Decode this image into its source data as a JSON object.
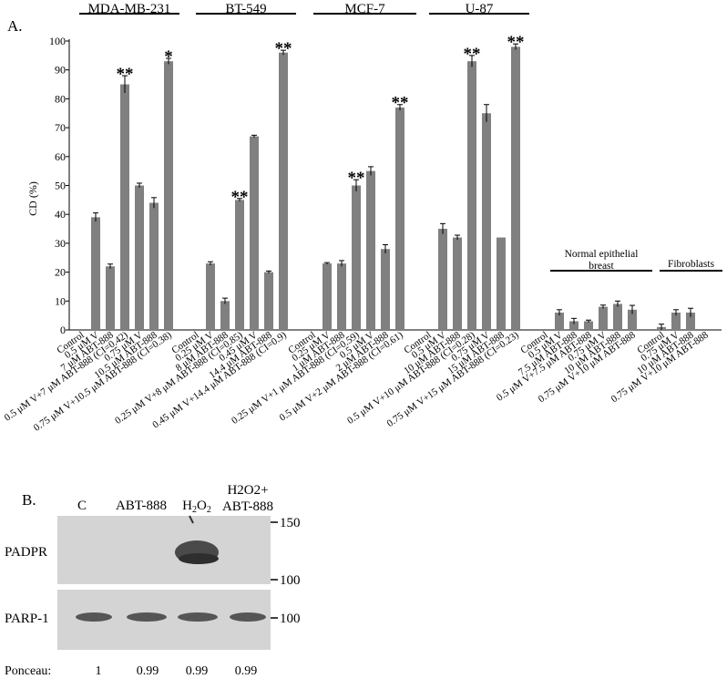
{
  "panel_a_label": "A.",
  "panel_b_label": "B.",
  "chart_data": {
    "type": "bar",
    "ylabel": "CD (%)",
    "ylim": [
      0,
      100
    ],
    "yticks": [
      0,
      10,
      20,
      30,
      40,
      50,
      60,
      70,
      80,
      90,
      100
    ],
    "groups": [
      {
        "name": "MDA-MB-231",
        "bars": [
          {
            "label": "Control",
            "value": 0,
            "err": 0,
            "sig": ""
          },
          {
            "label": "0.5 μM V",
            "value": 39,
            "err": 1.5,
            "sig": ""
          },
          {
            "label": "7 μM ABT-888",
            "value": 22,
            "err": 0.8,
            "sig": ""
          },
          {
            "label": "0.5 μM V+7 μM ABT-888 (CI=0.42)",
            "value": 85,
            "err": 3,
            "sig": "**"
          },
          {
            "label": "0.75 μM V",
            "value": 50,
            "err": 0.8,
            "sig": ""
          },
          {
            "label": "10.5 μM ABT-888",
            "value": 44,
            "err": 1.8,
            "sig": ""
          },
          {
            "label": "0.75 μM V+10.5 μM ABT-888 (CI=0.38)",
            "value": 93,
            "err": 1,
            "sig": "*"
          }
        ]
      },
      {
        "name": "BT-549",
        "bars": [
          {
            "label": "Control",
            "value": 0,
            "err": 0,
            "sig": ""
          },
          {
            "label": "0.25 μM V",
            "value": 23,
            "err": 0.6,
            "sig": ""
          },
          {
            "label": "8 μM ABT-888",
            "value": 10,
            "err": 1,
            "sig": ""
          },
          {
            "label": "0.25 μM V+8 μM ABT-888 (CI=0.85)",
            "value": 45,
            "err": 0.5,
            "sig": "**"
          },
          {
            "label": "0.45 μM V",
            "value": 67,
            "err": 0.4,
            "sig": ""
          },
          {
            "label": "14.4 μM ABT-888",
            "value": 20,
            "err": 0.4,
            "sig": ""
          },
          {
            "label": "0.45 μM V+14.4 μM ABT-888 (CI=0.9)",
            "value": 96,
            "err": 0.8,
            "sig": "**"
          }
        ]
      },
      {
        "name": "MCF-7",
        "bars": [
          {
            "label": "Control",
            "value": 0,
            "err": 0,
            "sig": ""
          },
          {
            "label": "0.25 μM V",
            "value": 23,
            "err": 0.3,
            "sig": ""
          },
          {
            "label": "1 μM ABT-888",
            "value": 23,
            "err": 1,
            "sig": ""
          },
          {
            "label": "0.25 μM V+1 μM ABT-888 (CI=0.59)",
            "value": 50,
            "err": 2,
            "sig": "**"
          },
          {
            "label": "0.5 μM V",
            "value": 55,
            "err": 1.5,
            "sig": ""
          },
          {
            "label": "2 μM ABT-888",
            "value": 28,
            "err": 1.5,
            "sig": ""
          },
          {
            "label": "0.5 μM V+2 μM ABT-888 (CI=0.61)",
            "value": 77,
            "err": 1,
            "sig": "**"
          }
        ]
      },
      {
        "name": "U-87",
        "bars": [
          {
            "label": "Control",
            "value": 0,
            "err": 0,
            "sig": ""
          },
          {
            "label": "0.5 μM V",
            "value": 35,
            "err": 1.8,
            "sig": ""
          },
          {
            "label": "10 μM ABT-888",
            "value": 32,
            "err": 0.8,
            "sig": ""
          },
          {
            "label": "0.5 μM V+10 μM ABT-888 (CI=0.28)",
            "value": 93,
            "err": 2,
            "sig": "**"
          },
          {
            "label": "0.75 μM V",
            "value": 75,
            "err": 3,
            "sig": ""
          },
          {
            "label": "15 μM ABT-888",
            "value": 32,
            "err": 0,
            "sig": ""
          },
          {
            "label": "0.75 μM V+15 μM ABT-888 (CI=0.23)",
            "value": 98,
            "err": 1,
            "sig": "**"
          }
        ]
      },
      {
        "name": "Normal epithelial breast",
        "bars": [
          {
            "label": "Control",
            "value": 0,
            "err": 0,
            "sig": ""
          },
          {
            "label": "0.5 μM V",
            "value": 6,
            "err": 1,
            "sig": ""
          },
          {
            "label": "7.5 μM ABT-888",
            "value": 3,
            "err": 1,
            "sig": ""
          },
          {
            "label": "0.5 μM V+7.5 μM ABT-888",
            "value": 3,
            "err": 0.4,
            "sig": ""
          },
          {
            "label": "0.75 μM V",
            "value": 8,
            "err": 0.6,
            "sig": ""
          },
          {
            "label": "10 μM ABT-888",
            "value": 9,
            "err": 1,
            "sig": ""
          },
          {
            "label": "0.75 μM V+10 μM ABT-888",
            "value": 7,
            "err": 1.5,
            "sig": ""
          }
        ]
      },
      {
        "name": "Fibroblasts",
        "bars": [
          {
            "label": "Control",
            "value": 1,
            "err": 1,
            "sig": ""
          },
          {
            "label": "0.75 μM V",
            "value": 6,
            "err": 1,
            "sig": ""
          },
          {
            "label": "10 μM ABT-888",
            "value": 6,
            "err": 1.5,
            "sig": ""
          },
          {
            "label": "0.75 μM V+10 μM ABT-888",
            "value": 0,
            "err": 0,
            "sig": ""
          }
        ]
      }
    ]
  },
  "blot": {
    "lanes": [
      "C",
      "ABT-888",
      "H2O2",
      "H2O2+\nABT-888"
    ],
    "lane_c": "C",
    "lane_abt": "ABT-888",
    "lane_h2o2_main": "H",
    "lane_h2o2_sub": "2",
    "lane_h2o2_tail": "O",
    "lane_h2o2_sub2": "2",
    "lane4_line1": "H2O2+",
    "lane4_line2": "ABT-888",
    "row1_label": "PADPR",
    "row2_label": "PARP-1",
    "markers": [
      "150",
      "100",
      "100"
    ],
    "ponceau_label": "Ponceau:",
    "ponceau_values": [
      "1",
      "0.99",
      "0.99",
      "0.99"
    ],
    "colors": {
      "bar": "#808080",
      "blot_bg": "#d2d2d2",
      "band": "#6a6a6a",
      "strong_band": "#3c3c3c"
    }
  }
}
